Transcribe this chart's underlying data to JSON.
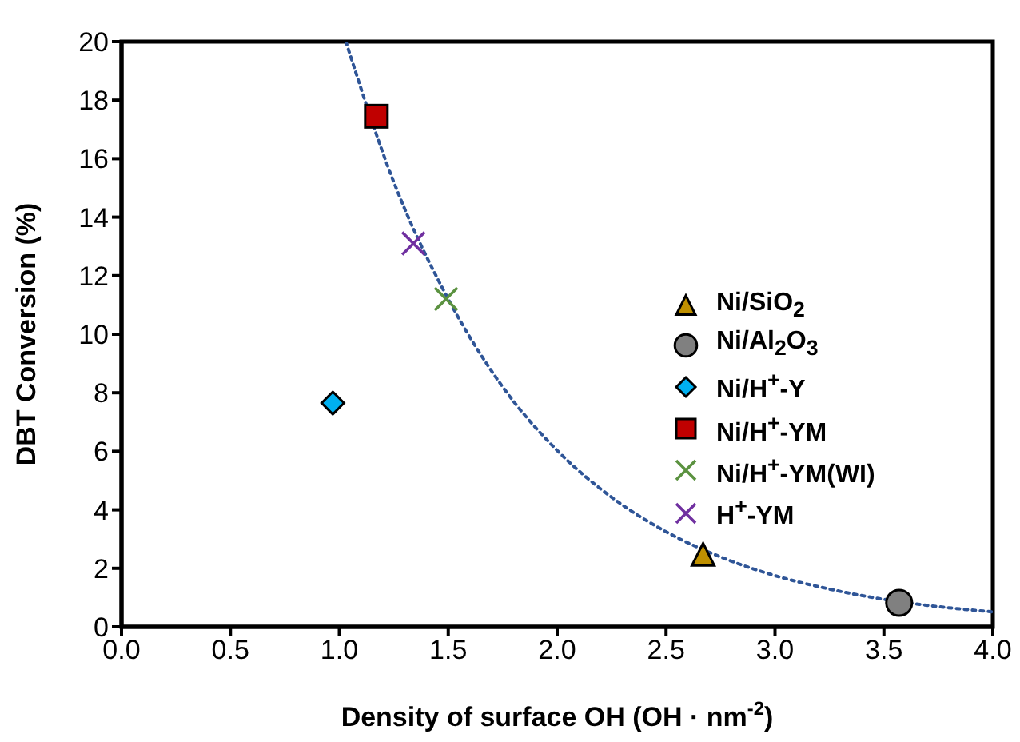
{
  "chart_data": {
    "type": "scatter",
    "xlabel": "Density of surface OH (OH · nm$^{-2}$)",
    "ylabel": "DBT Conversion (%)",
    "xlim": [
      0,
      4
    ],
    "ylim": [
      0,
      20
    ],
    "xticks": [
      {
        "value": 0,
        "label": "0.0"
      },
      {
        "value": 0.5,
        "label": "0.5"
      },
      {
        "value": 1,
        "label": "1.0"
      },
      {
        "value": 1.5,
        "label": "1.5"
      },
      {
        "value": 2,
        "label": "2.0"
      },
      {
        "value": 2.5,
        "label": "2.5"
      },
      {
        "value": 3,
        "label": "3.0"
      },
      {
        "value": 3.5,
        "label": "3.5"
      },
      {
        "value": 4,
        "label": "4.0"
      }
    ],
    "yticks": [
      0,
      2,
      4,
      6,
      8,
      10,
      12,
      14,
      16,
      18,
      20
    ],
    "legend": "right",
    "series": [
      {
        "name": "Ni/SiO$_{2}$",
        "color": "#bf9000",
        "marker": "triangle",
        "x": [
          2.67
        ],
        "values": [
          2.4
        ]
      },
      {
        "name": "Ni/Al$_{2}$O$_{3}$",
        "color": "#808080",
        "marker": "circle",
        "x": [
          3.57
        ],
        "values": [
          0.82
        ]
      },
      {
        "name": "Ni/H$^{+}$-Y",
        "color": "#00b0f0",
        "marker": "diamond",
        "x": [
          0.97
        ],
        "values": [
          7.65
        ]
      },
      {
        "name": "Ni/H$^{+}$-YM",
        "color": "#c00000",
        "marker": "square",
        "x": [
          1.17
        ],
        "values": [
          17.45
        ]
      },
      {
        "name": "Ni/H$^{+}$-YM(WI)",
        "color": "#5b9240",
        "marker": "cross",
        "x": [
          1.49
        ],
        "values": [
          11.2
        ]
      },
      {
        "name": "H$^{+}$-YM",
        "color": "#7030a0",
        "marker": "cross",
        "x": [
          1.34
        ],
        "values": [
          13.1
        ]
      },
      {
        "type": "line",
        "color": "#2f5597",
        "marker": "none",
        "line_style": "dotted",
        "x": [
          1.03,
          1.25,
          1.5,
          1.75,
          2.0,
          2.25,
          2.5,
          2.75,
          3.0,
          3.25,
          3.5,
          3.75,
          4.0
        ],
        "values": [
          20,
          15.2,
          11.2,
          8.2,
          6.03,
          4.43,
          3.25,
          2.39,
          1.75,
          1.29,
          0.94,
          0.69,
          0.51
        ]
      }
    ]
  }
}
